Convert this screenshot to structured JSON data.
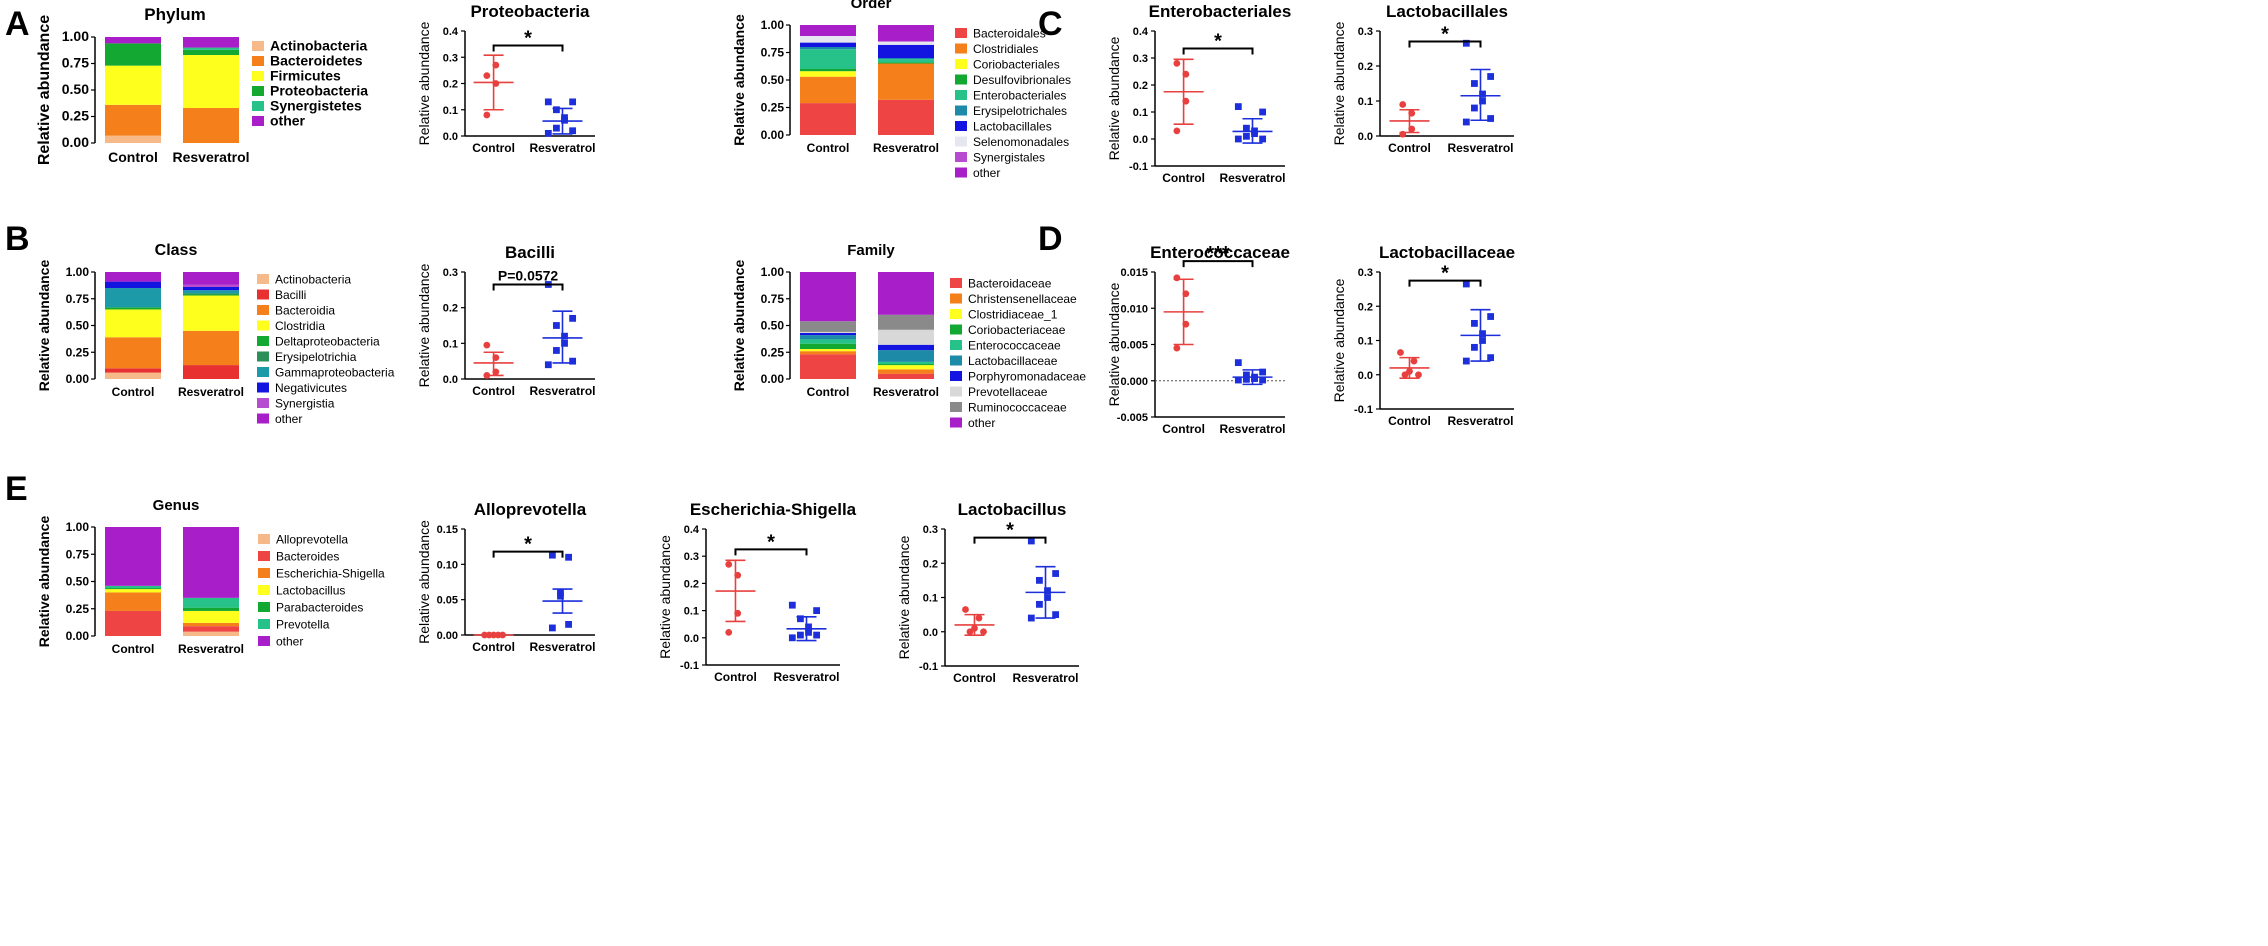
{
  "panel_letters": [
    "A",
    "B",
    "C",
    "D",
    "E"
  ],
  "colors": {
    "control": "#e8403f",
    "resveratrol": "#1c2fdb",
    "Actinobacteria": "#f5b98a",
    "Bacteroidetes": "#f47f1b",
    "Firmicutes": "#ffff1e",
    "Proteobacteria": "#12a832",
    "Synergistetes": "#26c28a",
    "other": "#a81ec8",
    "Bacilli": "#e83030",
    "Bacteroidia": "#f47f1b",
    "Clostridia": "#ffff1e",
    "Deltaproteobacteria": "#12a832",
    "Erysipelotrichia": "#2a8f58",
    "Gammaproteobacteria": "#1d9aa8",
    "Negativicutes": "#1414e0",
    "Synergistia": "#b84cd0",
    "Bacteroidales": "#ef4444",
    "Clostridiales": "#f47f1b",
    "Coriobacteriales": "#ffff1e",
    "Desulfovibrionales": "#12a832",
    "Enterobacteriales": "#26c28a",
    "Erysipelotrichales": "#1d8aa8",
    "Lactobacillales": "#1414e0",
    "Selenomonadales": "#e6e6f0",
    "Synergistales": "#b84cd0",
    "Bacteroidaceae": "#ef4444",
    "Christensenellaceae": "#f47f1b",
    "Clostridiaceae_1": "#ffff1e",
    "Coriobacteriaceae": "#12a832",
    "Enterococcaceae": "#26c28a",
    "Lactobacillaceae": "#1d8aa8",
    "Porphyromonadaceae": "#1414e0",
    "Prevotellaceae": "#d8d8d8",
    "Ruminococcaceae": "#8a8a8a",
    "Alloprevotella": "#f5b98a",
    "Bacteroides": "#ef4444",
    "Escherichia-Shigella": "#f47f1b",
    "Lactobacillus": "#ffff1e",
    "Parabacteroides": "#12a832",
    "Prevotella": "#26c28a"
  },
  "chart_data": [
    {
      "id": "A-phylum",
      "panel": "A",
      "type": "bar",
      "stacked": true,
      "title": "Phylum",
      "ylabel": "Relative abundance",
      "ylim": [
        0,
        1
      ],
      "yticks": [
        "0.00",
        "0.25",
        "0.50",
        "0.75",
        "1.00"
      ],
      "categories": [
        "Control",
        "Resveratrol"
      ],
      "legend": "right",
      "series": [
        {
          "name": "Actinobacteria",
          "values": [
            0.07,
            0.0
          ]
        },
        {
          "name": "Bacteroidetes",
          "values": [
            0.29,
            0.33
          ]
        },
        {
          "name": "Firmicutes",
          "values": [
            0.37,
            0.5
          ]
        },
        {
          "name": "Proteobacteria",
          "values": [
            0.21,
            0.05
          ]
        },
        {
          "name": "Synergistetes",
          "values": [
            0.0,
            0.02
          ]
        },
        {
          "name": "other",
          "values": [
            0.06,
            0.1
          ]
        }
      ]
    },
    {
      "id": "A-proteobacteria",
      "panel": "A",
      "type": "scatter",
      "title": "Proteobacteria",
      "ylabel": "Relative abundance",
      "ylim": [
        0,
        0.4
      ],
      "yticks": [
        "0.0",
        "0.1",
        "0.2",
        "0.3",
        "0.4"
      ],
      "categories": [
        "Control",
        "Resveratrol"
      ],
      "groups": [
        {
          "name": "Control",
          "marker": "circle",
          "points": [
            0.23,
            0.27,
            0.2,
            0.08
          ],
          "mean": 0.204,
          "sd_low": 0.1,
          "sd_high": 0.308
        },
        {
          "name": "Resveratrol",
          "marker": "square",
          "points": [
            0.13,
            0.13,
            0.1,
            0.07,
            0.06,
            0.03,
            0.02,
            0.01
          ],
          "mean": 0.057,
          "sd_low": 0.008,
          "sd_high": 0.105
        }
      ],
      "significance": "*",
      "sig_y": 0.345
    },
    {
      "id": "B-class",
      "panel": "B",
      "type": "bar",
      "stacked": true,
      "title": "Class",
      "ylabel": "Relative abundance",
      "ylim": [
        0,
        1
      ],
      "yticks": [
        "0.00",
        "0.25",
        "0.50",
        "0.75",
        "1.00"
      ],
      "categories": [
        "Control",
        "Resveratrol"
      ],
      "legend": "right",
      "series": [
        {
          "name": "Actinobacteria",
          "values": [
            0.06,
            0.0
          ]
        },
        {
          "name": "Bacilli",
          "values": [
            0.04,
            0.13
          ]
        },
        {
          "name": "Bacteroidia",
          "values": [
            0.29,
            0.32
          ]
        },
        {
          "name": "Clostridia",
          "values": [
            0.26,
            0.33
          ]
        },
        {
          "name": "Deltaproteobacteria",
          "values": [
            0.02,
            0.01
          ]
        },
        {
          "name": "Erysipelotrichia",
          "values": [
            0.0,
            0.01
          ]
        },
        {
          "name": "Gammaproteobacteria",
          "values": [
            0.18,
            0.03
          ]
        },
        {
          "name": "Negativicutes",
          "values": [
            0.06,
            0.03
          ]
        },
        {
          "name": "Synergistia",
          "values": [
            0.0,
            0.02
          ]
        },
        {
          "name": "other",
          "values": [
            0.09,
            0.12
          ]
        }
      ]
    },
    {
      "id": "B-bacilli",
      "panel": "B",
      "type": "scatter",
      "title": "Bacilli",
      "ylabel": "Relative abundance",
      "ylim": [
        0,
        0.3
      ],
      "yticks": [
        "0.0",
        "0.1",
        "0.2",
        "0.3"
      ],
      "categories": [
        "Control",
        "Resveratrol"
      ],
      "groups": [
        {
          "name": "Control",
          "marker": "circle",
          "points": [
            0.095,
            0.06,
            0.02,
            0.01
          ],
          "mean": 0.045,
          "sd_low": 0.01,
          "sd_high": 0.075
        },
        {
          "name": "Resveratrol",
          "marker": "square",
          "points": [
            0.265,
            0.17,
            0.15,
            0.12,
            0.1,
            0.08,
            0.05,
            0.04
          ],
          "mean": 0.115,
          "sd_low": 0.045,
          "sd_high": 0.19
        }
      ],
      "significance": "P=0.0572",
      "sig_y": 0.265
    },
    {
      "id": "C-order",
      "panel": "C",
      "type": "bar",
      "stacked": true,
      "title": "Order",
      "ylabel": "Relative abundance",
      "ylim": [
        0,
        1
      ],
      "yticks": [
        "0.00",
        "0.25",
        "0.50",
        "0.75",
        "1.00"
      ],
      "categories": [
        "Control",
        "Resveratrol"
      ],
      "legend": "right",
      "series": [
        {
          "name": "Bacteroidales",
          "values": [
            0.29,
            0.32
          ]
        },
        {
          "name": "Clostridiales",
          "values": [
            0.24,
            0.33
          ]
        },
        {
          "name": "Coriobacteriales",
          "values": [
            0.05,
            0.0
          ]
        },
        {
          "name": "Desulfovibrionales",
          "values": [
            0.02,
            0.01
          ]
        },
        {
          "name": "Enterobacteriales",
          "values": [
            0.18,
            0.03
          ]
        },
        {
          "name": "Erysipelotrichales",
          "values": [
            0.02,
            0.01
          ]
        },
        {
          "name": "Lactobacillales",
          "values": [
            0.04,
            0.12
          ]
        },
        {
          "name": "Selenomonadales",
          "values": [
            0.06,
            0.03
          ]
        },
        {
          "name": "Synergistales",
          "values": [
            0.0,
            0.0
          ]
        },
        {
          "name": "other",
          "values": [
            0.1,
            0.15
          ]
        }
      ]
    },
    {
      "id": "C-enterobacteriales",
      "panel": "C",
      "type": "scatter",
      "title": "Enterobacteriales",
      "ylabel": "Relative abundance",
      "ylim": [
        -0.1,
        0.4
      ],
      "yticks": [
        "-0.1",
        "0.0",
        "0.1",
        "0.2",
        "0.3",
        "0.4"
      ],
      "categories": [
        "Control",
        "Resveratrol"
      ],
      "groups": [
        {
          "name": "Control",
          "marker": "circle",
          "points": [
            0.28,
            0.24,
            0.14,
            0.03
          ],
          "mean": 0.175,
          "sd_low": 0.055,
          "sd_high": 0.295
        },
        {
          "name": "Resveratrol",
          "marker": "square",
          "points": [
            0.12,
            0.1,
            0.04,
            0.03,
            0.02,
            0.01,
            0.0,
            0.0
          ],
          "mean": 0.028,
          "sd_low": -0.015,
          "sd_high": 0.075
        }
      ],
      "significance": "*",
      "sig_y": 0.335
    },
    {
      "id": "C-lactobacillales",
      "panel": "C",
      "type": "scatter",
      "title": "Lactobacillales",
      "ylabel": "Relative abundance",
      "ylim": [
        0,
        0.3
      ],
      "yticks": [
        "0.0",
        "0.1",
        "0.2",
        "0.3"
      ],
      "categories": [
        "Control",
        "Resveratrol"
      ],
      "groups": [
        {
          "name": "Control",
          "marker": "circle",
          "points": [
            0.09,
            0.065,
            0.02,
            0.005
          ],
          "mean": 0.043,
          "sd_low": 0.01,
          "sd_high": 0.075
        },
        {
          "name": "Resveratrol",
          "marker": "square",
          "points": [
            0.265,
            0.17,
            0.15,
            0.12,
            0.1,
            0.08,
            0.05,
            0.04
          ],
          "mean": 0.115,
          "sd_low": 0.045,
          "sd_high": 0.19
        }
      ],
      "significance": "*",
      "sig_y": 0.27
    },
    {
      "id": "D-family",
      "panel": "D",
      "type": "bar",
      "stacked": true,
      "title": "Family",
      "ylabel": "Relative abundance",
      "ylim": [
        0,
        1
      ],
      "yticks": [
        "0.00",
        "0.25",
        "0.50",
        "0.75",
        "1.00"
      ],
      "categories": [
        "Control",
        "Resveratrol"
      ],
      "legend": "right",
      "series": [
        {
          "name": "Bacteroidaceae",
          "values": [
            0.23,
            0.05
          ]
        },
        {
          "name": "Christensenellaceae",
          "values": [
            0.03,
            0.04
          ]
        },
        {
          "name": "Clostridiaceae_1",
          "values": [
            0.02,
            0.04
          ]
        },
        {
          "name": "Coriobacteriaceae",
          "values": [
            0.05,
            0.01
          ]
        },
        {
          "name": "Enterococcaceae",
          "values": [
            0.04,
            0.02
          ]
        },
        {
          "name": "Lactobacillaceae",
          "values": [
            0.04,
            0.11
          ]
        },
        {
          "name": "Porphyromonadaceae",
          "values": [
            0.02,
            0.05
          ]
        },
        {
          "name": "Prevotellaceae",
          "values": [
            0.01,
            0.14
          ]
        },
        {
          "name": "Ruminococcaceae",
          "values": [
            0.1,
            0.14
          ]
        },
        {
          "name": "other",
          "values": [
            0.46,
            0.4
          ]
        }
      ]
    },
    {
      "id": "D-enterococcaceae",
      "panel": "D",
      "type": "scatter",
      "title": "Enterococcaceae",
      "ylabel": "Relative abundance",
      "ylim": [
        -0.005,
        0.015
      ],
      "yticks": [
        "-0.005",
        "0.000",
        "0.005",
        "0.010",
        "0.015"
      ],
      "categories": [
        "Control",
        "Resveratrol"
      ],
      "zero_line": true,
      "groups": [
        {
          "name": "Control",
          "marker": "circle",
          "points": [
            0.0142,
            0.012,
            0.0078,
            0.0045
          ],
          "mean": 0.0095,
          "sd_low": 0.005,
          "sd_high": 0.014
        },
        {
          "name": "Resveratrol",
          "marker": "square",
          "points": [
            0.0025,
            0.0012,
            0.0008,
            0.0005,
            0.0003,
            0.0002,
            0.0001,
            0.0001
          ],
          "mean": 0.0005,
          "sd_low": -0.0005,
          "sd_high": 0.0015
        },
        {
          "name": "",
          "marker": "none",
          "points": []
        }
      ],
      "significance": "***",
      "sig_y": 0.0165
    },
    {
      "id": "D-lactobacillaceae",
      "panel": "D",
      "type": "scatter",
      "title": "Lactobacillaceae",
      "ylabel": "Relative abundance",
      "ylim": [
        -0.1,
        0.3
      ],
      "yticks": [
        "-0.1",
        "0.0",
        "0.1",
        "0.2",
        "0.3"
      ],
      "categories": [
        "Control",
        "Resveratrol"
      ],
      "groups": [
        {
          "name": "Control",
          "marker": "circle",
          "points": [
            0.065,
            0.04,
            0.01,
            0.0,
            0.0
          ],
          "mean": 0.02,
          "sd_low": -0.01,
          "sd_high": 0.05
        },
        {
          "name": "Resveratrol",
          "marker": "square",
          "points": [
            0.265,
            0.17,
            0.15,
            0.12,
            0.1,
            0.08,
            0.05,
            0.04
          ],
          "mean": 0.115,
          "sd_low": 0.04,
          "sd_high": 0.19
        }
      ],
      "significance": "*",
      "sig_y": 0.275
    },
    {
      "id": "E-genus",
      "panel": "E",
      "type": "bar",
      "stacked": true,
      "title": "Genus",
      "ylabel": "Relative abundance",
      "ylim": [
        0,
        1
      ],
      "yticks": [
        "0.00",
        "0.25",
        "0.50",
        "0.75",
        "1.00"
      ],
      "categories": [
        "Control",
        "Resveratrol"
      ],
      "legend": "right",
      "series": [
        {
          "name": "Alloprevotella",
          "values": [
            0.0,
            0.04
          ]
        },
        {
          "name": "Bacteroides",
          "values": [
            0.23,
            0.05
          ]
        },
        {
          "name": "Escherichia-Shigella",
          "values": [
            0.17,
            0.03
          ]
        },
        {
          "name": "Lactobacillus",
          "values": [
            0.03,
            0.11
          ]
        },
        {
          "name": "Parabacteroides",
          "values": [
            0.01,
            0.03
          ]
        },
        {
          "name": "Prevotella",
          "values": [
            0.02,
            0.09
          ]
        },
        {
          "name": "other",
          "values": [
            0.54,
            0.65
          ]
        }
      ]
    },
    {
      "id": "E-alloprevotella",
      "panel": "E",
      "type": "scatter",
      "title": "Alloprevotella",
      "ylabel": "Relative abundance",
      "ylim": [
        0,
        0.15
      ],
      "yticks": [
        "0.00",
        "0.05",
        "0.10",
        "0.15"
      ],
      "categories": [
        "Control",
        "Resveratrol"
      ],
      "groups": [
        {
          "name": "Control",
          "marker": "circle",
          "points": [
            0.0,
            0.0,
            0.0,
            0.0,
            0.0
          ],
          "mean": 0.0,
          "sd_low": 0.0,
          "sd_high": 0.0
        },
        {
          "name": "Resveratrol",
          "marker": "square",
          "points": [
            0.113,
            0.11,
            0.06,
            0.055,
            0.015,
            0.01
          ],
          "mean": 0.048,
          "sd_low": 0.031,
          "sd_high": 0.065
        }
      ],
      "significance": "*",
      "sig_y": 0.118
    },
    {
      "id": "E-escherichia",
      "panel": "E",
      "type": "scatter",
      "title": "Escherichia-Shigella",
      "ylabel": "Relative abundance",
      "ylim": [
        -0.1,
        0.4
      ],
      "yticks": [
        "-0.1",
        "0.0",
        "0.1",
        "0.2",
        "0.3",
        "0.4"
      ],
      "categories": [
        "Control",
        "Resveratrol"
      ],
      "groups": [
        {
          "name": "Control",
          "marker": "circle",
          "points": [
            0.27,
            0.23,
            0.09,
            0.02
          ],
          "mean": 0.172,
          "sd_low": 0.06,
          "sd_high": 0.285
        },
        {
          "name": "Resveratrol",
          "marker": "square",
          "points": [
            0.12,
            0.1,
            0.07,
            0.04,
            0.02,
            0.01,
            0.01,
            0.0
          ],
          "mean": 0.033,
          "sd_low": -0.01,
          "sd_high": 0.077
        },
        {
          "name": "",
          "marker": "none",
          "points": []
        }
      ],
      "significance": "*",
      "sig_y": 0.325
    },
    {
      "id": "E-lactobacillus",
      "panel": "E",
      "type": "scatter",
      "title": "Lactobacillus",
      "ylabel": "Relative abundance",
      "ylim": [
        -0.1,
        0.3
      ],
      "yticks": [
        "-0.1",
        "0.0",
        "0.1",
        "0.2",
        "0.3"
      ],
      "categories": [
        "Control",
        "Resveratrol"
      ],
      "groups": [
        {
          "name": "Control",
          "marker": "circle",
          "points": [
            0.065,
            0.04,
            0.01,
            0.0,
            0.0
          ],
          "mean": 0.02,
          "sd_low": -0.01,
          "sd_high": 0.05
        },
        {
          "name": "Resveratrol",
          "marker": "square",
          "points": [
            0.265,
            0.17,
            0.15,
            0.12,
            0.1,
            0.08,
            0.05,
            0.04
          ],
          "mean": 0.115,
          "sd_low": 0.04,
          "sd_high": 0.19
        }
      ],
      "significance": "*",
      "sig_y": 0.275
    }
  ]
}
